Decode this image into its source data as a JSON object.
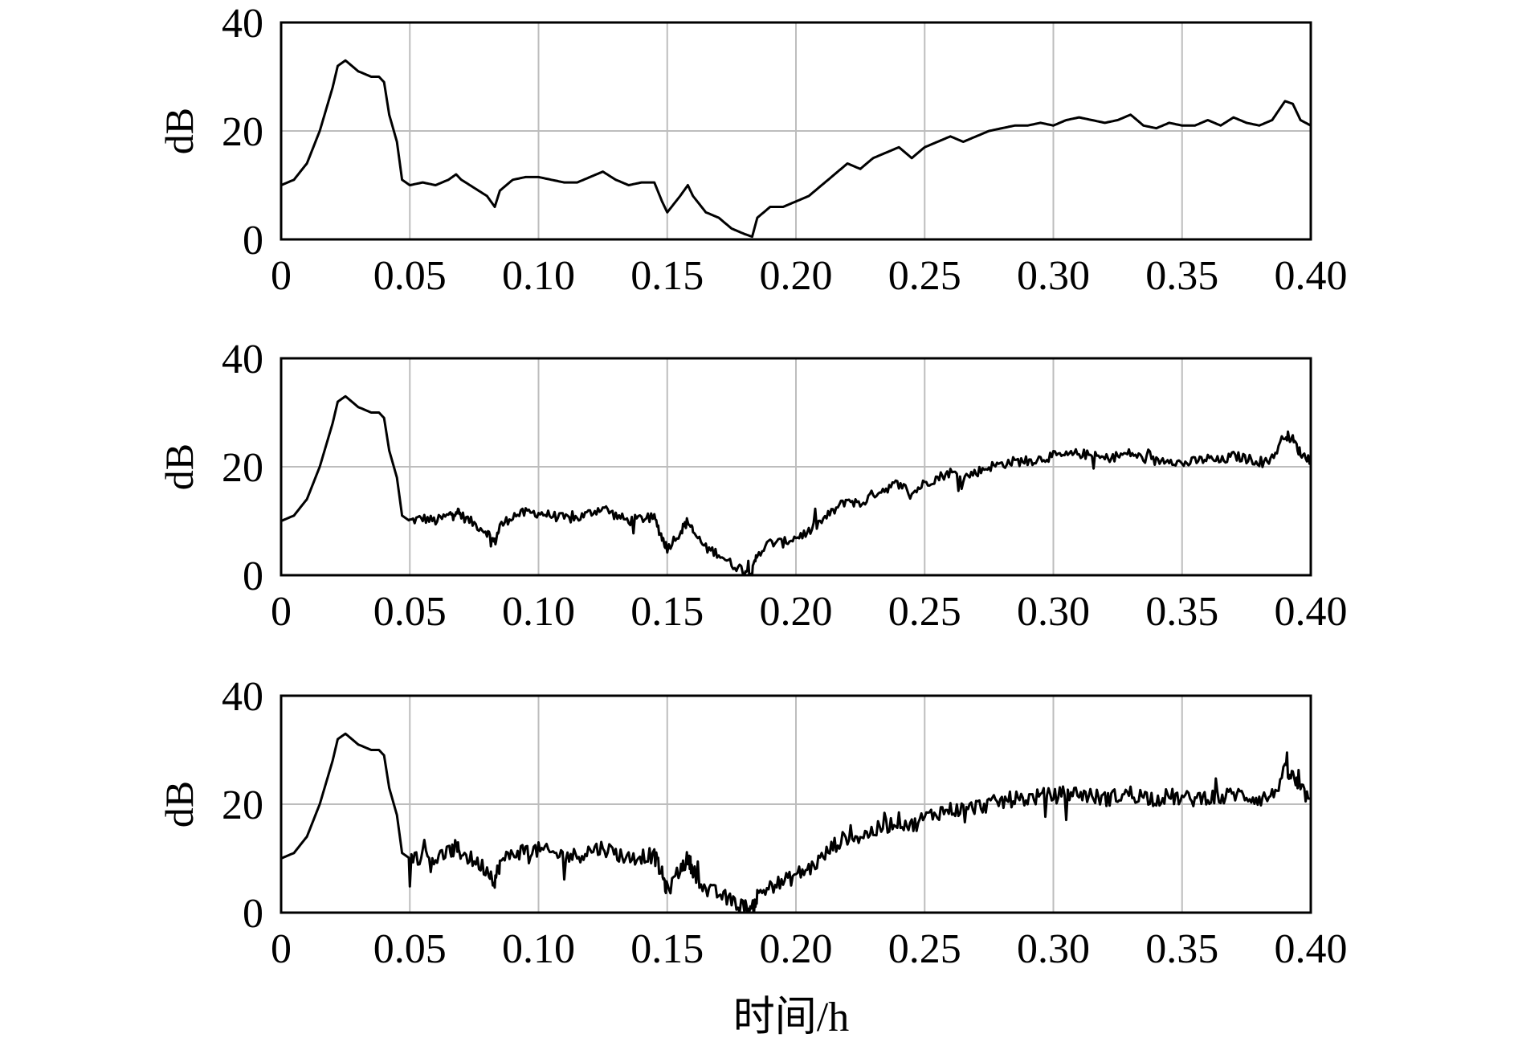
{
  "figure": {
    "xlabel": "时间/h",
    "grid_color": "#bdbdbd",
    "line_color": "#000000"
  },
  "chart_data": [
    {
      "type": "line",
      "xlabel": "",
      "ylabel": "dB",
      "xlim": [
        0,
        0.4
      ],
      "ylim": [
        0,
        40
      ],
      "xticks": [
        0,
        0.05,
        0.1,
        0.15,
        0.2,
        0.25,
        0.3,
        0.35,
        0.4
      ],
      "xtick_labels": [
        "0",
        "0.05",
        "0.10",
        "0.15",
        "0.20",
        "0.25",
        "0.30",
        "0.35",
        "0.40"
      ],
      "yticks": [
        0,
        20,
        40
      ],
      "ytick_labels": [
        "0",
        "20",
        "40"
      ],
      "grid": true,
      "noise": 0,
      "series": [
        {
          "x": [
            0,
            0.005,
            0.01,
            0.015,
            0.02,
            0.022,
            0.025,
            0.03,
            0.035,
            0.038,
            0.04,
            0.042,
            0.045,
            0.047,
            0.05,
            0.055,
            0.06,
            0.065,
            0.068,
            0.07,
            0.075,
            0.08,
            0.083,
            0.085,
            0.09,
            0.095,
            0.1,
            0.105,
            0.11,
            0.115,
            0.12,
            0.125,
            0.13,
            0.135,
            0.14,
            0.145,
            0.148,
            0.15,
            0.155,
            0.158,
            0.16,
            0.165,
            0.17,
            0.175,
            0.18,
            0.183,
            0.185,
            0.19,
            0.195,
            0.2,
            0.205,
            0.21,
            0.215,
            0.22,
            0.225,
            0.23,
            0.235,
            0.24,
            0.245,
            0.25,
            0.255,
            0.26,
            0.265,
            0.27,
            0.275,
            0.28,
            0.285,
            0.29,
            0.295,
            0.3,
            0.305,
            0.31,
            0.315,
            0.32,
            0.325,
            0.33,
            0.335,
            0.34,
            0.345,
            0.35,
            0.355,
            0.36,
            0.365,
            0.37,
            0.375,
            0.38,
            0.385,
            0.39,
            0.393,
            0.396,
            0.4
          ],
          "y": [
            10,
            11,
            14,
            20,
            28,
            32,
            33,
            31,
            30,
            30,
            29,
            23,
            18,
            11,
            10,
            10.5,
            10,
            11,
            12,
            11,
            9.5,
            8,
            6,
            9,
            11,
            11.5,
            11.5,
            11,
            10.5,
            10.5,
            11.5,
            12.5,
            11,
            10,
            10.5,
            10.5,
            7,
            5,
            8,
            10,
            8,
            5,
            4,
            2,
            1,
            0.5,
            4,
            6,
            6,
            7,
            8,
            10,
            12,
            14,
            13,
            15,
            16,
            17,
            15,
            17,
            18,
            19,
            18,
            19,
            20,
            20.5,
            21,
            21,
            21.5,
            21,
            22,
            22.5,
            22,
            21.5,
            22,
            23,
            21,
            20.5,
            21.5,
            21,
            21,
            22,
            21,
            22.5,
            21.5,
            21,
            22,
            25.5,
            25,
            22,
            21
          ]
        }
      ]
    },
    {
      "type": "line",
      "xlabel": "",
      "ylabel": "dB",
      "xlim": [
        0,
        0.4
      ],
      "ylim": [
        0,
        40
      ],
      "xticks": [
        0,
        0.05,
        0.1,
        0.15,
        0.2,
        0.25,
        0.3,
        0.35,
        0.4
      ],
      "xtick_labels": [
        "0",
        "0.05",
        "0.10",
        "0.15",
        "0.20",
        "0.25",
        "0.30",
        "0.35",
        "0.40"
      ],
      "yticks": [
        0,
        20,
        40
      ],
      "ytick_labels": [
        "0",
        "20",
        "40"
      ],
      "grid": true,
      "noise": 0.9,
      "series": [
        {
          "x": [
            0,
            0.005,
            0.01,
            0.015,
            0.02,
            0.022,
            0.025,
            0.03,
            0.035,
            0.038,
            0.04,
            0.042,
            0.045,
            0.047,
            0.05,
            0.055,
            0.06,
            0.065,
            0.068,
            0.07,
            0.075,
            0.08,
            0.083,
            0.085,
            0.09,
            0.095,
            0.1,
            0.105,
            0.11,
            0.115,
            0.12,
            0.125,
            0.13,
            0.135,
            0.14,
            0.145,
            0.148,
            0.15,
            0.155,
            0.158,
            0.16,
            0.165,
            0.17,
            0.175,
            0.18,
            0.183,
            0.185,
            0.19,
            0.195,
            0.2,
            0.205,
            0.21,
            0.215,
            0.22,
            0.225,
            0.23,
            0.235,
            0.24,
            0.245,
            0.25,
            0.255,
            0.26,
            0.265,
            0.27,
            0.275,
            0.28,
            0.285,
            0.29,
            0.295,
            0.3,
            0.305,
            0.31,
            0.315,
            0.32,
            0.325,
            0.33,
            0.335,
            0.34,
            0.345,
            0.35,
            0.355,
            0.36,
            0.365,
            0.37,
            0.375,
            0.38,
            0.385,
            0.39,
            0.393,
            0.396,
            0.4
          ],
          "y": [
            10,
            11,
            14,
            20,
            28,
            32,
            33,
            31,
            30,
            30,
            29,
            23,
            18,
            11,
            10,
            10.5,
            10,
            11,
            12,
            11,
            9.5,
            8,
            6,
            9,
            11,
            11.5,
            11.5,
            11,
            10.5,
            10.5,
            11.5,
            12.5,
            11,
            10,
            10.5,
            10.5,
            7,
            5,
            8,
            10,
            8,
            5,
            4,
            2,
            1,
            0.5,
            4,
            6,
            6,
            7,
            8,
            10,
            12,
            14,
            13,
            15,
            16,
            17,
            15,
            17,
            18,
            19,
            18,
            19,
            20,
            20.5,
            21,
            21,
            21.5,
            22,
            22,
            22.5,
            22,
            21.5,
            22,
            22.5,
            21.5,
            21,
            21.5,
            20.5,
            21,
            21.5,
            21,
            22,
            21.5,
            21,
            21.5,
            26,
            25,
            22.5,
            21
          ]
        }
      ]
    },
    {
      "type": "line",
      "xlabel": "",
      "ylabel": "dB",
      "xlim": [
        0,
        0.4
      ],
      "ylim": [
        0,
        40
      ],
      "xticks": [
        0,
        0.05,
        0.1,
        0.15,
        0.2,
        0.25,
        0.3,
        0.35,
        0.4
      ],
      "xtick_labels": [
        "0",
        "0.05",
        "0.10",
        "0.15",
        "0.20",
        "0.25",
        "0.30",
        "0.35",
        "0.40"
      ],
      "yticks": [
        0,
        20,
        40
      ],
      "ytick_labels": [
        "0",
        "20",
        "40"
      ],
      "grid": true,
      "noise": 1.5,
      "series": [
        {
          "x": [
            0,
            0.005,
            0.01,
            0.015,
            0.02,
            0.022,
            0.025,
            0.03,
            0.035,
            0.038,
            0.04,
            0.042,
            0.045,
            0.047,
            0.05,
            0.055,
            0.06,
            0.065,
            0.068,
            0.07,
            0.075,
            0.08,
            0.083,
            0.085,
            0.09,
            0.095,
            0.1,
            0.105,
            0.11,
            0.115,
            0.12,
            0.125,
            0.13,
            0.135,
            0.14,
            0.145,
            0.148,
            0.15,
            0.155,
            0.158,
            0.16,
            0.165,
            0.17,
            0.175,
            0.18,
            0.183,
            0.185,
            0.19,
            0.195,
            0.2,
            0.205,
            0.21,
            0.215,
            0.22,
            0.225,
            0.23,
            0.235,
            0.24,
            0.245,
            0.25,
            0.255,
            0.26,
            0.265,
            0.27,
            0.275,
            0.28,
            0.285,
            0.29,
            0.295,
            0.3,
            0.305,
            0.31,
            0.315,
            0.32,
            0.325,
            0.33,
            0.335,
            0.34,
            0.345,
            0.35,
            0.355,
            0.36,
            0.365,
            0.37,
            0.375,
            0.38,
            0.385,
            0.39,
            0.393,
            0.396,
            0.4
          ],
          "y": [
            10,
            11,
            14,
            20,
            28,
            32,
            33,
            31,
            30,
            30,
            29,
            23,
            18,
            11,
            10,
            10.5,
            10,
            11,
            12,
            11,
            9.5,
            8,
            6,
            9,
            11,
            11.5,
            11.5,
            11,
            10.5,
            10.5,
            11.5,
            12,
            11,
            10,
            10.5,
            10.5,
            7,
            4,
            8,
            10,
            8,
            4,
            3.5,
            2,
            1,
            0.5,
            3,
            5,
            5.5,
            7,
            8,
            10,
            12.5,
            14,
            14,
            15,
            16,
            17,
            16,
            17.5,
            18.5,
            19,
            19,
            19.5,
            20,
            20.5,
            21,
            21,
            21.5,
            21.5,
            22,
            22,
            21.5,
            21,
            21.5,
            22,
            21.5,
            21,
            21.5,
            21,
            21,
            21.5,
            21,
            22,
            21.5,
            21,
            21.5,
            26,
            25,
            22.5,
            21
          ]
        }
      ]
    }
  ]
}
